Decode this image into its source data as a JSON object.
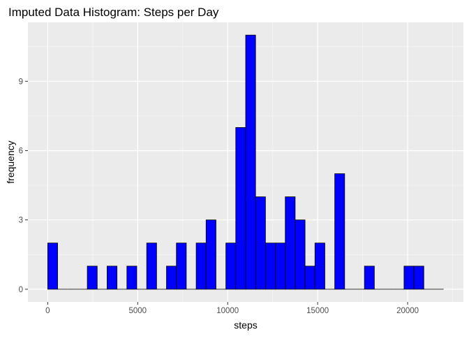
{
  "chart_data": {
    "type": "bar",
    "title": "Imputed Data Histogram: Steps per Day",
    "xlabel": "steps",
    "ylabel": "frequency",
    "xlim": [
      -1100,
      23100
    ],
    "ylim": [
      -0.55,
      11.55
    ],
    "x_ticks": [
      0,
      5000,
      10000,
      15000,
      20000
    ],
    "x_tick_labels": [
      "0",
      "5000",
      "10000",
      "15000",
      "20000"
    ],
    "y_ticks": [
      0,
      3,
      6,
      9
    ],
    "y_tick_labels": [
      "0",
      "3",
      "6",
      "9"
    ],
    "bin_width": 550,
    "bins_start": 0,
    "values": [
      2,
      0,
      0,
      0,
      1,
      0,
      1,
      0,
      1,
      0,
      2,
      0,
      1,
      2,
      0,
      2,
      3,
      0,
      2,
      7,
      11,
      4,
      2,
      2,
      4,
      3,
      1,
      2,
      0,
      5,
      0,
      0,
      1,
      0,
      0,
      0,
      1,
      1,
      0,
      0
    ],
    "grid": true,
    "legend": "none",
    "colors": {
      "bar_fill": "#0000ff",
      "bar_stroke": "#000000",
      "panel_background": "#ebebeb",
      "grid_major": "#ffffff",
      "grid_minor": "#f5f5f5",
      "tick_label": "#4d4d4d"
    }
  }
}
